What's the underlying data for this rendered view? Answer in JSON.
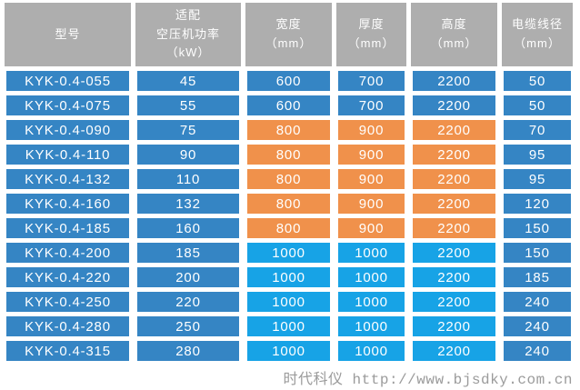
{
  "table": {
    "headers": [
      "型号",
      "适配\n空压机功率\n（kW）",
      "宽度\n（mm）",
      "厚度\n（mm）",
      "高度\n（mm）",
      "电缆线径\n（mm）"
    ],
    "rows": [
      {
        "model": "KYK-0.4-055",
        "power": "45",
        "width": "600",
        "thickness": "700",
        "height": "2200",
        "cable": "50",
        "band": "steel"
      },
      {
        "model": "KYK-0.4-075",
        "power": "55",
        "width": "600",
        "thickness": "700",
        "height": "2200",
        "cable": "50",
        "band": "steel"
      },
      {
        "model": "KYK-0.4-090",
        "power": "75",
        "width": "800",
        "thickness": "900",
        "height": "2200",
        "cable": "70",
        "band": "orange"
      },
      {
        "model": "KYK-0.4-110",
        "power": "90",
        "width": "800",
        "thickness": "900",
        "height": "2200",
        "cable": "95",
        "band": "orange"
      },
      {
        "model": "KYK-0.4-132",
        "power": "110",
        "width": "800",
        "thickness": "900",
        "height": "2200",
        "cable": "95",
        "band": "orange"
      },
      {
        "model": "KYK-0.4-160",
        "power": "132",
        "width": "800",
        "thickness": "900",
        "height": "2200",
        "cable": "120",
        "band": "orange"
      },
      {
        "model": "KYK-0.4-185",
        "power": "160",
        "width": "800",
        "thickness": "900",
        "height": "2200",
        "cable": "150",
        "band": "orange"
      },
      {
        "model": "KYK-0.4-200",
        "power": "185",
        "width": "1000",
        "thickness": "1000",
        "height": "2200",
        "cable": "150",
        "band": "cyan"
      },
      {
        "model": "KYK-0.4-220",
        "power": "200",
        "width": "1000",
        "thickness": "1000",
        "height": "2200",
        "cable": "185",
        "band": "cyan"
      },
      {
        "model": "KYK-0.4-250",
        "power": "220",
        "width": "1000",
        "thickness": "1000",
        "height": "2200",
        "cable": "240",
        "band": "cyan"
      },
      {
        "model": "KYK-0.4-280",
        "power": "250",
        "width": "1000",
        "thickness": "1000",
        "height": "2200",
        "cable": "240",
        "band": "cyan"
      },
      {
        "model": "KYK-0.4-315",
        "power": "280",
        "width": "1000",
        "thickness": "1000",
        "height": "2200",
        "cable": "240",
        "band": "cyan"
      }
    ]
  },
  "footer": {
    "text": "时代科仪 http://www.bjsdky.com.cn"
  },
  "colors": {
    "header_bg": "#AEAEAE",
    "steel_blue": "#3585C4",
    "orange": "#F0914B",
    "cyan": "#17A3E6",
    "footer_text": "#9B9B9B",
    "cell_text": "#FFFFFF",
    "background": "#FFFFFF"
  },
  "chart_data": {
    "type": "table",
    "title": "",
    "columns": [
      "型号",
      "适配空压机功率（kW）",
      "宽度（mm）",
      "厚度（mm）",
      "高度（mm）",
      "电缆线径（mm）"
    ],
    "rows": [
      [
        "KYK-0.4-055",
        45,
        600,
        700,
        2200,
        50
      ],
      [
        "KYK-0.4-075",
        55,
        600,
        700,
        2200,
        50
      ],
      [
        "KYK-0.4-090",
        75,
        800,
        900,
        2200,
        70
      ],
      [
        "KYK-0.4-110",
        90,
        800,
        900,
        2200,
        95
      ],
      [
        "KYK-0.4-132",
        110,
        800,
        900,
        2200,
        95
      ],
      [
        "KYK-0.4-160",
        132,
        800,
        900,
        2200,
        120
      ],
      [
        "KYK-0.4-185",
        160,
        800,
        900,
        2200,
        150
      ],
      [
        "KYK-0.4-200",
        185,
        1000,
        1000,
        2200,
        150
      ],
      [
        "KYK-0.4-220",
        200,
        1000,
        1000,
        2200,
        185
      ],
      [
        "KYK-0.4-250",
        220,
        1000,
        1000,
        2200,
        240
      ],
      [
        "KYK-0.4-280",
        250,
        1000,
        1000,
        2200,
        240
      ],
      [
        "KYK-0.4-315",
        280,
        1000,
        1000,
        2200,
        240
      ]
    ]
  }
}
